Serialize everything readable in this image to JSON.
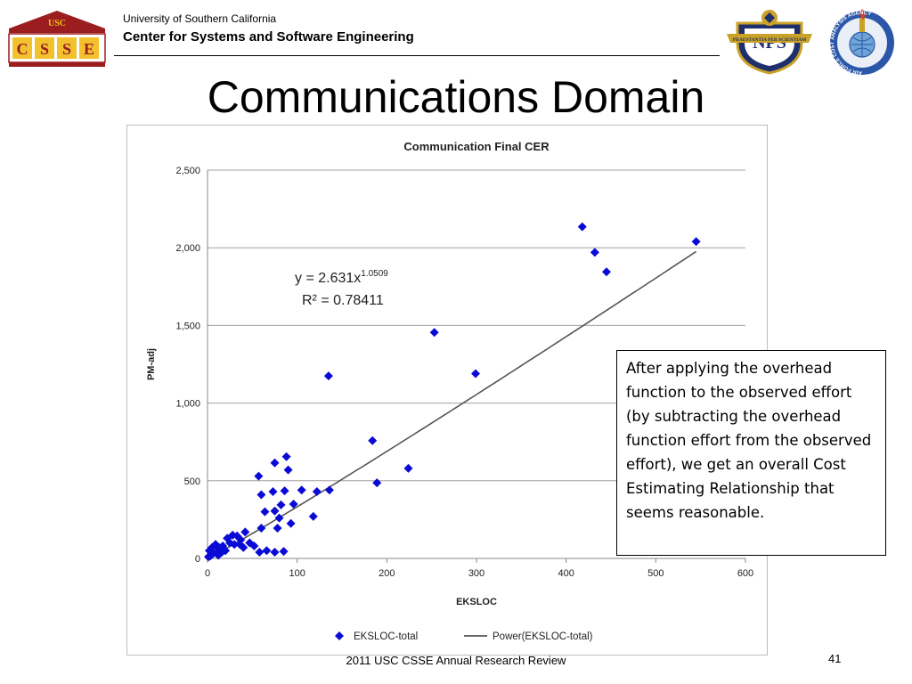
{
  "header": {
    "logo_text": "USC",
    "logo_letters": "CSSE",
    "university": "University of Southern California",
    "center": "Center for Systems and Software Engineering",
    "nps_text": "NPS",
    "nps_motto": "PRAESTANTIA PER SCIENTIAM",
    "af_ring": "AIR FORCE COST ANALYSIS AGENCY"
  },
  "slide": {
    "title": "Communications Domain",
    "callout": "After applying the overhead function to the observed effort (by subtracting the overhead function effort from the observed effort), we get an overall Cost Estimating Relationship that seems reasonable."
  },
  "footer": {
    "text": "2011 USC CSSE Annual Research Review",
    "page": "41"
  },
  "chart_data": {
    "type": "scatter",
    "title": "Communication Final CER",
    "xlabel": "EKSLOC",
    "ylabel": "PM-adj",
    "xlim": [
      0,
      600
    ],
    "ylim": [
      0,
      2500
    ],
    "xticks": [
      "0",
      "100",
      "200",
      "300",
      "400",
      "500",
      "600"
    ],
    "yticks": [
      "0",
      "500",
      "1,000",
      "1,500",
      "2,000",
      "2,500"
    ],
    "grid": "horizontal",
    "legend_position": "bottom",
    "equation": "y = 2.631x",
    "equation_exponent": "1.0509",
    "r_squared": "R² = 0.78411",
    "colors": {
      "points": "#0a0ad6",
      "trend": "#555555"
    },
    "trendline": {
      "a": 2.631,
      "b": 1.0509,
      "x_range": [
        0.5,
        545
      ]
    },
    "series": [
      {
        "name": "EKSLOC-total",
        "points": [
          [
            545,
            2040
          ],
          [
            418,
            2135
          ],
          [
            432,
            1970
          ],
          [
            445,
            1845
          ],
          [
            253,
            1455
          ],
          [
            299,
            1190
          ],
          [
            135,
            1175
          ],
          [
            184,
            758
          ],
          [
            224,
            580
          ],
          [
            189,
            487
          ],
          [
            88,
            655
          ],
          [
            75,
            615
          ],
          [
            90,
            570
          ],
          [
            57,
            530
          ],
          [
            105,
            440
          ],
          [
            122,
            430
          ],
          [
            136,
            440
          ],
          [
            86,
            435
          ],
          [
            73,
            430
          ],
          [
            60,
            410
          ],
          [
            96,
            350
          ],
          [
            82,
            345
          ],
          [
            64,
            300
          ],
          [
            75,
            305
          ],
          [
            80,
            260
          ],
          [
            118,
            270
          ],
          [
            93,
            225
          ],
          [
            78,
            195
          ],
          [
            60,
            195
          ],
          [
            42,
            170
          ],
          [
            28,
            150
          ],
          [
            33,
            145
          ],
          [
            22,
            130
          ],
          [
            37,
            120
          ],
          [
            25,
            100
          ],
          [
            47,
            100
          ],
          [
            52,
            80
          ],
          [
            40,
            70
          ],
          [
            17,
            80
          ],
          [
            9,
            90
          ],
          [
            5,
            70
          ],
          [
            13,
            70
          ],
          [
            16,
            40
          ],
          [
            20,
            50
          ],
          [
            10,
            40
          ],
          [
            6,
            30
          ],
          [
            3,
            15
          ],
          [
            1,
            10
          ],
          [
            12,
            20
          ],
          [
            58,
            40
          ],
          [
            66,
            50
          ],
          [
            75,
            40
          ],
          [
            85,
            45
          ],
          [
            30,
            90
          ],
          [
            36,
            90
          ],
          [
            2,
            50
          ]
        ]
      },
      {
        "name": "Power(EKSLOC-total)"
      }
    ]
  }
}
